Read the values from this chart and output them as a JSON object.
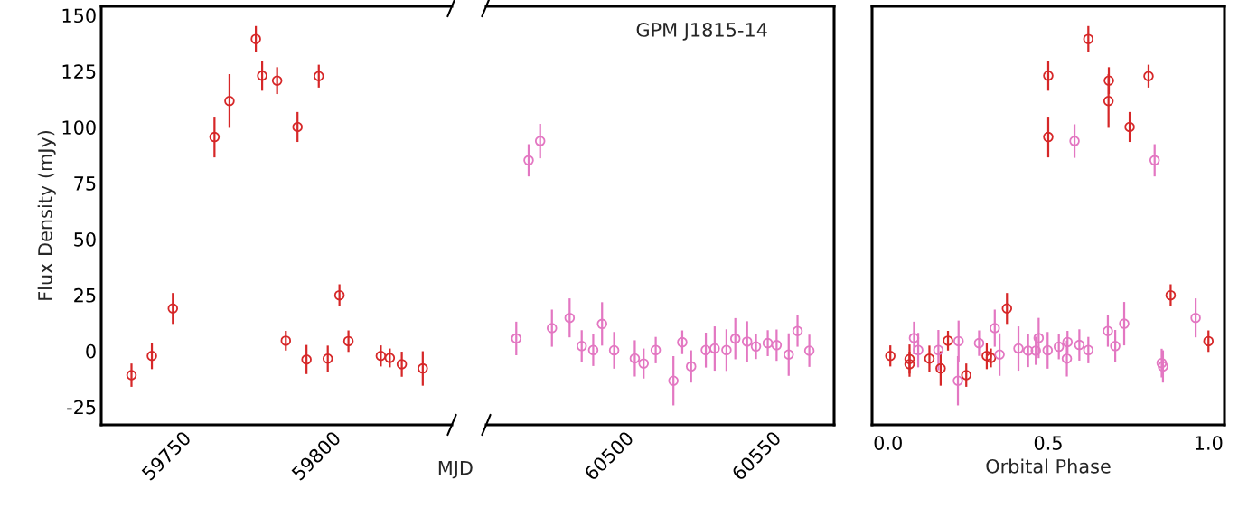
{
  "chart_data": [
    {
      "type": "scatter",
      "ylabel": "Flux Density (mJy)",
      "xlabel": "MJD",
      "xlim": [
        59723,
        59840
      ],
      "xticks": [
        59750,
        59800
      ],
      "ylim": [
        -33,
        154
      ],
      "yticks": [
        -25,
        0,
        25,
        50,
        75,
        100,
        125,
        150
      ],
      "marker": "circle",
      "grid": false,
      "legend": false,
      "series": [
        {
          "color": "#d62728",
          "x": [
            59733.1,
            59739.9,
            59746.9,
            59760.8,
            59765.8,
            59774.6,
            59776.7,
            59781.7,
            59784.6,
            59788.5,
            59791.5,
            59795.6,
            59798.6,
            59802.5,
            59805.5,
            59816.3,
            59819.3,
            59823.3,
            59830.3
          ],
          "values": [
            -10.8,
            -2.2,
            19.0,
            95.6,
            111.7,
            139.4,
            123.0,
            120.8,
            4.6,
            100.1,
            -3.8,
            122.8,
            -3.4,
            24.9,
            4.4,
            -2.2,
            -3.1,
            -5.9,
            -7.8
          ],
          "errors": [
            5.2,
            5.9,
            6.9,
            9.1,
            12,
            5.8,
            6.7,
            6,
            4.4,
            6.7,
            6.5,
            5.1,
            5.8,
            4.9,
            4.8,
            4.7,
            4.2,
            5.6,
            7.7
          ]
        }
      ]
    },
    {
      "type": "scatter",
      "title": "GPM J1815-14",
      "xlim": [
        60453,
        60571
      ],
      "xticks": [
        60500,
        60550
      ],
      "ylim": [
        -33,
        154
      ],
      "tick_labels": "x",
      "marker": "circle",
      "grid": false,
      "legend": false,
      "series": [
        {
          "color": "#e377c2",
          "x": [
            60463.2,
            60467.4,
            60471.3,
            60475.3,
            60481.3,
            60485.4,
            60489.3,
            60492.3,
            60496.4,
            60503.4,
            60506.4,
            60510.5,
            60516.5,
            60519.5,
            60522.5,
            60527.5,
            60530.5,
            60534.5,
            60537.5,
            60541.5,
            60544.5,
            60548.5,
            60551.5,
            60555.6,
            60558.6,
            60562.6
          ],
          "values": [
            5.6,
            85.2,
            93.8,
            10.2,
            14.8,
            2.2,
            0.4,
            12.1,
            0.3,
            -3.3,
            -5.6,
            0.4,
            -13.3,
            3.9,
            -6.9,
            0.4,
            1.1,
            0.4,
            5.5,
            4.2,
            2.0,
            3.5,
            2.6,
            -1.6,
            8.9,
            0.1
          ],
          "errors": [
            7.5,
            7.2,
            7.7,
            8.3,
            8.7,
            7.1,
            7.1,
            9.7,
            8.2,
            8.1,
            6.7,
            5.9,
            11,
            5.3,
            7.2,
            7.8,
            9.9,
            9.3,
            9.2,
            9.1,
            5.6,
            5.8,
            7,
            9.5,
            7,
            7.2
          ]
        }
      ]
    },
    {
      "type": "scatter",
      "xlabel": "Orbital Phase",
      "xlim": [
        -0.05,
        1.05
      ],
      "xticks": [
        {
          "value": 0,
          "label": "0.0"
        },
        0.5,
        {
          "value": 1,
          "label": "1.0"
        }
      ],
      "ylim": [
        -33,
        154
      ],
      "yticks": [
        -25,
        0,
        25,
        50,
        75,
        100,
        125,
        150
      ],
      "tick_labels": "x",
      "marker": "circle",
      "grid": false,
      "legend": false,
      "series": [
        {
          "color": "#d62728",
          "x": [
            0.007,
            0.067,
            0.067,
            0.129,
            0.164,
            0.187,
            0.244,
            0.308,
            0.321,
            0.371,
            0.5,
            0.5,
            0.625,
            0.689,
            0.688,
            0.754,
            0.813,
            0.882,
            1.0
          ],
          "values": [
            -2.2,
            -3.6,
            -5.9,
            -3.4,
            -7.8,
            4.6,
            -10.8,
            -2.2,
            -3.1,
            19.0,
            123.0,
            95.6,
            139.4,
            120.8,
            111.7,
            100.1,
            122.8,
            24.9,
            4.4
          ],
          "errors": [
            4.7,
            6.5,
            5.6,
            5.8,
            7.7,
            4.4,
            5.2,
            5.9,
            4.2,
            6.9,
            6.7,
            9.1,
            5.8,
            6,
            12,
            6.7,
            5.1,
            4.9,
            4.8
          ]
        },
        {
          "color": "#e377c2",
          "x": [
            0.081,
            0.094,
            0.157,
            0.22,
            0.218,
            0.284,
            0.333,
            0.348,
            0.407,
            0.437,
            0.461,
            0.47,
            0.498,
            0.533,
            0.56,
            0.558,
            0.597,
            0.582,
            0.625,
            0.686,
            0.709,
            0.737,
            0.832,
            0.854,
            0.858,
            0.96
          ],
          "values": [
            5.8,
            0.4,
            0.4,
            4.4,
            -13.3,
            3.5,
            10.2,
            -1.6,
            1.1,
            0.1,
            0.1,
            5.8,
            0.3,
            1.9,
            4.0,
            -3.4,
            2.7,
            93.8,
            0.4,
            8.9,
            2.2,
            12.2,
            85.2,
            -5.4,
            -6.9,
            14.8
          ],
          "errors": [
            7.3,
            7.7,
            9,
            9.2,
            11,
            5.7,
            8.3,
            9.5,
            9.9,
            7.3,
            6.3,
            9,
            8.2,
            5.6,
            5,
            8,
            7,
            7.5,
            5.9,
            7,
            7.2,
            9.7,
            7.2,
            6.4,
            7.2,
            8.7
          ]
        }
      ]
    }
  ]
}
